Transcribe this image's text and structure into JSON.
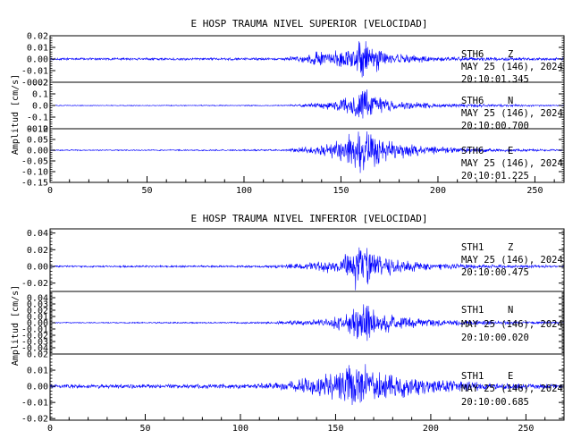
{
  "style": {
    "trace_color": "#0000ff",
    "axis_color": "#000000",
    "background": "#ffffff"
  },
  "chart_data": [
    {
      "type": "line",
      "title": "E HOSP TRAUMA NIVEL SUPERIOR [VELOCIDAD]",
      "ylabel": "Amplitud [cm/s]",
      "xlim": [
        0,
        265
      ],
      "xticks": [
        "0",
        "50",
        "100",
        "150",
        "200",
        "250"
      ],
      "x_tick_values": [
        0,
        50,
        100,
        150,
        200,
        250
      ],
      "grid": false,
      "panels": [
        {
          "station": "STH6",
          "component": "Z",
          "date": "MAY 25 (146), 2024",
          "time": "20:10:01.345",
          "ylim": [
            -0.02,
            0.02
          ],
          "yticks": [
            "0.02",
            "0.01",
            "0.00",
            "-0.01",
            "-0.02"
          ],
          "ytick_values": [
            0.02,
            0.01,
            0.0,
            -0.01,
            -0.02
          ],
          "envelope": [
            [
              0,
              0.0012
            ],
            [
              60,
              0.0012
            ],
            [
              120,
              0.0014
            ],
            [
              128,
              0.003
            ],
            [
              135,
              0.007
            ],
            [
              145,
              0.007
            ],
            [
              155,
              0.011
            ],
            [
              160,
              0.022
            ],
            [
              165,
              0.015
            ],
            [
              175,
              0.006
            ],
            [
              195,
              0.003
            ],
            [
              220,
              0.0018
            ],
            [
              265,
              0.0013
            ]
          ]
        },
        {
          "station": "STH6",
          "component": "N",
          "date": "MAY 25 (146), 2024",
          "time": "20:10:00.700",
          "ylim": [
            -0.2,
            0.2
          ],
          "yticks": [
            "0.2",
            "0.1",
            "0.0",
            "-0.1",
            "-0.2"
          ],
          "ytick_values": [
            0.2,
            0.1,
            0.0,
            -0.1,
            -0.2
          ],
          "envelope": [
            [
              0,
              0.004
            ],
            [
              120,
              0.005
            ],
            [
              130,
              0.015
            ],
            [
              145,
              0.04
            ],
            [
              155,
              0.09
            ],
            [
              160,
              0.2
            ],
            [
              165,
              0.12
            ],
            [
              175,
              0.05
            ],
            [
              200,
              0.02
            ],
            [
              265,
              0.006
            ]
          ]
        },
        {
          "station": "STH6",
          "component": "E",
          "date": "MAY 25 (146), 2024",
          "time": "20:10:01.225",
          "ylim": [
            -0.15,
            0.1
          ],
          "yticks": [
            "0.10",
            "0.05",
            "0.00",
            "-0.05",
            "-0.10",
            "-0.15"
          ],
          "ytick_values": [
            0.1,
            0.05,
            0.0,
            -0.05,
            -0.1,
            -0.15
          ],
          "envelope": [
            [
              0,
              0.003
            ],
            [
              120,
              0.004
            ],
            [
              130,
              0.015
            ],
            [
              145,
              0.04
            ],
            [
              155,
              0.08
            ],
            [
              160,
              0.14
            ],
            [
              168,
              0.09
            ],
            [
              175,
              0.05
            ],
            [
              190,
              0.03
            ],
            [
              210,
              0.012
            ],
            [
              265,
              0.004
            ]
          ]
        }
      ]
    },
    {
      "type": "line",
      "title": "E HOSP TRAUMA NIVEL INFERIOR [VELOCIDAD]",
      "ylabel": "Amplitud [cm/s]",
      "xlim": [
        0,
        270
      ],
      "xticks": [
        "0",
        "50",
        "100",
        "150",
        "200",
        "250"
      ],
      "x_tick_values": [
        0,
        50,
        100,
        150,
        200,
        250
      ],
      "grid": false,
      "panels": [
        {
          "station": "STH1",
          "component": "Z",
          "date": "MAY 25 (146), 2024",
          "time": "20:10:00.475",
          "ylim": [
            -0.03,
            0.045
          ],
          "yticks": [
            "0.04",
            "0.02",
            "0.00",
            "-0.02"
          ],
          "ytick_values": [
            0.04,
            0.02,
            0.0,
            -0.02
          ],
          "envelope": [
            [
              0,
              0.0012
            ],
            [
              110,
              0.0015
            ],
            [
              125,
              0.003
            ],
            [
              135,
              0.006
            ],
            [
              150,
              0.01
            ],
            [
              158,
              0.018
            ],
            [
              162,
              0.04
            ],
            [
              168,
              0.02
            ],
            [
              180,
              0.012
            ],
            [
              195,
              0.006
            ],
            [
              220,
              0.003
            ],
            [
              270,
              0.0015
            ]
          ]
        },
        {
          "station": "STH1",
          "component": "N",
          "date": "MAY 25 (146), 2024",
          "time": "20:10:00.020",
          "ylim": [
            -0.05,
            0.05
          ],
          "yticks": [
            "0.04",
            "0.03",
            "0.02",
            "0.01",
            "0.00",
            "-0.01",
            "-0.02",
            "-0.03",
            "-0.04"
          ],
          "ytick_values": [
            0.04,
            0.03,
            0.02,
            0.01,
            0.0,
            -0.01,
            -0.02,
            -0.03,
            -0.04
          ],
          "envelope": [
            [
              0,
              0.001
            ],
            [
              110,
              0.0015
            ],
            [
              130,
              0.004
            ],
            [
              145,
              0.008
            ],
            [
              155,
              0.015
            ],
            [
              160,
              0.03
            ],
            [
              165,
              0.045
            ],
            [
              172,
              0.02
            ],
            [
              190,
              0.01
            ],
            [
              210,
              0.005
            ],
            [
              270,
              0.0015
            ]
          ]
        },
        {
          "station": "STH1",
          "component": "E",
          "date": "MAY 25 (146), 2024",
          "time": "20:10:00.685",
          "ylim": [
            -0.021,
            0.02
          ],
          "yticks": [
            "0.02",
            "0.01",
            "0.00",
            "-0.01",
            "-0.02"
          ],
          "ytick_values": [
            0.02,
            0.01,
            0.0,
            -0.01,
            -0.02
          ],
          "envelope": [
            [
              0,
              0.0014
            ],
            [
              110,
              0.0018
            ],
            [
              128,
              0.004
            ],
            [
              140,
              0.008
            ],
            [
              150,
              0.01
            ],
            [
              158,
              0.014
            ],
            [
              162,
              0.02
            ],
            [
              170,
              0.012
            ],
            [
              185,
              0.008
            ],
            [
              205,
              0.005
            ],
            [
              230,
              0.0025
            ],
            [
              270,
              0.0015
            ]
          ]
        }
      ]
    }
  ]
}
